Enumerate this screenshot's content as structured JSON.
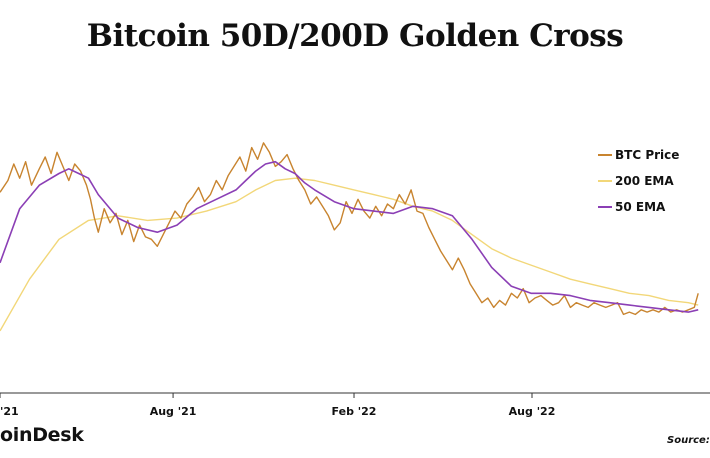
{
  "title": "Bitcoin 50D/200D Golden Cross",
  "brand": "oinDesk",
  "source": "Source: T",
  "colors": {
    "price": "#c8842f",
    "ema200": "#f2d779",
    "ema50": "#8b3fb5",
    "axis": "#333333",
    "text": "#111111"
  },
  "chart_data": {
    "type": "line",
    "title": "Bitcoin 50D/200D Golden Cross",
    "xlabel": "",
    "ylabel": "",
    "grid": false,
    "legend_position": "right",
    "x_ticks": [
      {
        "label": "'21",
        "value": 0
      },
      {
        "label": "Aug '21",
        "value": 176
      },
      {
        "label": "Feb '22",
        "value": 360
      },
      {
        "label": "Aug '22",
        "value": 541
      }
    ],
    "x_range": [
      0,
      722
    ],
    "y_range": [
      0,
      100
    ],
    "series": [
      {
        "name": "BTC Price",
        "color": "#c8842f",
        "x": [
          0,
          8,
          14,
          20,
          26,
          32,
          40,
          46,
          52,
          58,
          64,
          70,
          76,
          82,
          88,
          92,
          96,
          100,
          106,
          112,
          118,
          124,
          130,
          136,
          142,
          148,
          154,
          160,
          166,
          172,
          178,
          184,
          190,
          196,
          202,
          208,
          214,
          220,
          226,
          232,
          238,
          244,
          250,
          256,
          262,
          268,
          274,
          280,
          286,
          292,
          298,
          304,
          310,
          316,
          322,
          328,
          334,
          340,
          346,
          352,
          358,
          364,
          370,
          376,
          382,
          388,
          394,
          400,
          406,
          412,
          418,
          424,
          430,
          436,
          442,
          448,
          454,
          460,
          466,
          472,
          478,
          484,
          490,
          496,
          502,
          508,
          514,
          520,
          526,
          532,
          538,
          544,
          550,
          556,
          562,
          568,
          574,
          580,
          586,
          592,
          598,
          604,
          610,
          616,
          622,
          628,
          634,
          640,
          646,
          652,
          658,
          664,
          670,
          676,
          682,
          688,
          694,
          700,
          706,
          710
        ],
        "y": [
          65,
          70,
          77,
          71,
          78,
          68,
          75,
          80,
          73,
          82,
          76,
          70,
          77,
          74,
          68,
          62,
          54,
          48,
          58,
          52,
          56,
          47,
          53,
          44,
          51,
          46,
          45,
          42,
          47,
          52,
          57,
          54,
          60,
          63,
          67,
          61,
          64,
          70,
          66,
          72,
          76,
          80,
          74,
          84,
          79,
          86,
          82,
          76,
          78,
          81,
          75,
          70,
          66,
          60,
          63,
          59,
          55,
          49,
          52,
          61,
          56,
          62,
          57,
          54,
          59,
          55,
          60,
          58,
          64,
          60,
          66,
          57,
          56,
          50,
          45,
          40,
          36,
          32,
          37,
          32,
          26,
          22,
          18,
          20,
          16,
          19,
          17,
          22,
          20,
          24,
          18,
          20,
          21,
          19,
          17,
          18,
          21,
          16,
          18,
          17,
          16,
          18,
          17,
          16,
          17,
          18,
          13,
          14,
          13,
          15,
          14,
          15,
          14,
          16,
          14,
          15,
          14,
          15,
          16,
          22
        ]
      },
      {
        "name": "200 EMA",
        "color": "#f2d779",
        "x": [
          0,
          30,
          60,
          90,
          120,
          150,
          180,
          210,
          240,
          260,
          280,
          300,
          320,
          340,
          360,
          380,
          400,
          420,
          440,
          460,
          480,
          500,
          520,
          540,
          560,
          580,
          600,
          620,
          640,
          660,
          680,
          700,
          710
        ],
        "y": [
          6,
          28,
          45,
          53,
          55,
          53,
          54,
          57,
          61,
          66,
          70,
          71,
          70,
          68,
          66,
          64,
          62,
          59,
          57,
          53,
          47,
          41,
          37,
          34,
          31,
          28,
          26,
          24,
          22,
          21,
          19,
          18,
          17
        ]
      },
      {
        "name": "50 EMA",
        "color": "#8b3fb5",
        "x": [
          0,
          20,
          40,
          60,
          70,
          80,
          90,
          100,
          120,
          140,
          160,
          180,
          200,
          220,
          240,
          250,
          260,
          270,
          280,
          290,
          300,
          310,
          320,
          340,
          360,
          380,
          400,
          420,
          440,
          460,
          480,
          500,
          520,
          540,
          560,
          580,
          600,
          620,
          640,
          660,
          680,
          700,
          710
        ],
        "y": [
          35,
          58,
          68,
          73,
          75,
          73,
          71,
          64,
          54,
          50,
          48,
          51,
          58,
          62,
          66,
          70,
          74,
          77,
          78,
          75,
          73,
          69,
          66,
          61,
          58,
          57,
          56,
          59,
          58,
          55,
          45,
          33,
          25,
          22,
          22,
          21,
          19,
          18,
          17,
          16,
          15,
          14,
          15
        ]
      }
    ]
  }
}
